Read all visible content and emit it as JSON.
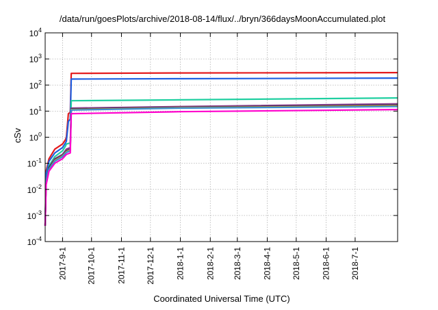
{
  "chart_data": {
    "type": "line",
    "title": "/data/run/goesPlots/archive/2018-08-14/flux/../bryn/366daysMoonAccumulated.plot",
    "xlabel": "Coordinated Universal Time (UTC)",
    "ylabel": "cSv",
    "yscale": "log",
    "ylim": [
      0.0001,
      10000
    ],
    "xlim": [
      "2017-08-14",
      "2018-08-14"
    ],
    "grid": true,
    "legend": "none",
    "x_ticks": [
      "2017-9-1",
      "2017-10-1",
      "2017-11-1",
      "2017-12-1",
      "2018-1-1",
      "2018-2-1",
      "2018-3-1",
      "2018-4-1",
      "2018-5-1",
      "2018-6-1",
      "2018-7-1"
    ],
    "y_ticks": [
      {
        "value": 0.0001,
        "base": "10",
        "exp": "-4"
      },
      {
        "value": 0.001,
        "base": "10",
        "exp": "-3"
      },
      {
        "value": 0.01,
        "base": "10",
        "exp": "-2"
      },
      {
        "value": 0.1,
        "base": "10",
        "exp": "-1"
      },
      {
        "value": 1,
        "base": "10",
        "exp": "0"
      },
      {
        "value": 10,
        "base": "10",
        "exp": "1"
      },
      {
        "value": 100,
        "base": "10",
        "exp": "2"
      },
      {
        "value": 1000,
        "base": "10",
        "exp": "3"
      },
      {
        "value": 10000,
        "base": "10",
        "exp": "4"
      }
    ],
    "series": [
      {
        "color": "#e41a1c",
        "points": [
          [
            "2017-08-14",
            0.0004
          ],
          [
            "2017-08-15",
            0.05
          ],
          [
            "2017-08-18",
            0.15
          ],
          [
            "2017-08-24",
            0.35
          ],
          [
            "2017-09-01",
            0.55
          ],
          [
            "2017-09-04",
            0.8
          ],
          [
            "2017-09-05",
            1.0
          ],
          [
            "2017-09-07",
            8
          ],
          [
            "2017-09-09",
            9
          ],
          [
            "2017-09-10",
            280
          ],
          [
            "2018-01-01",
            290
          ],
          [
            "2018-08-14",
            300
          ]
        ]
      },
      {
        "color": "#1f5fe0",
        "points": [
          [
            "2017-08-14",
            0.0004
          ],
          [
            "2017-08-15",
            0.04
          ],
          [
            "2017-08-18",
            0.12
          ],
          [
            "2017-08-24",
            0.25
          ],
          [
            "2017-09-01",
            0.4
          ],
          [
            "2017-09-04",
            0.6
          ],
          [
            "2017-09-05",
            0.7
          ],
          [
            "2017-09-07",
            4
          ],
          [
            "2017-09-09",
            5
          ],
          [
            "2017-09-10",
            170
          ],
          [
            "2018-01-01",
            175
          ],
          [
            "2018-08-14",
            185
          ]
        ]
      },
      {
        "color": "#1fcfa0",
        "points": [
          [
            "2017-08-14",
            0.0004
          ],
          [
            "2017-08-15",
            0.02
          ],
          [
            "2017-08-18",
            0.08
          ],
          [
            "2017-08-24",
            0.18
          ],
          [
            "2017-09-01",
            0.3
          ],
          [
            "2017-09-04",
            0.45
          ],
          [
            "2017-09-05",
            0.55
          ],
          [
            "2017-09-09",
            0.6
          ],
          [
            "2017-09-10",
            25
          ],
          [
            "2018-01-01",
            27
          ],
          [
            "2018-08-14",
            32
          ]
        ]
      },
      {
        "color": "#8b3a8b",
        "points": [
          [
            "2017-08-14",
            0.0004
          ],
          [
            "2017-08-15",
            0.02
          ],
          [
            "2017-08-18",
            0.07
          ],
          [
            "2017-08-24",
            0.15
          ],
          [
            "2017-09-01",
            0.22
          ],
          [
            "2017-09-05",
            0.35
          ],
          [
            "2017-09-09",
            0.4
          ],
          [
            "2017-09-10",
            13
          ],
          [
            "2018-01-01",
            15
          ],
          [
            "2018-08-14",
            19
          ]
        ]
      },
      {
        "color": "#333355",
        "points": [
          [
            "2017-08-14",
            0.0004
          ],
          [
            "2017-08-15",
            0.02
          ],
          [
            "2017-08-18",
            0.07
          ],
          [
            "2017-08-24",
            0.14
          ],
          [
            "2017-09-01",
            0.2
          ],
          [
            "2017-09-05",
            0.3
          ],
          [
            "2017-09-09",
            0.35
          ],
          [
            "2017-09-10",
            12
          ],
          [
            "2018-01-01",
            14
          ],
          [
            "2018-08-14",
            17
          ]
        ]
      },
      {
        "color": "#c8a040",
        "points": [
          [
            "2017-08-14",
            0.0004
          ],
          [
            "2017-08-15",
            0.02
          ],
          [
            "2017-08-18",
            0.06
          ],
          [
            "2017-08-24",
            0.13
          ],
          [
            "2017-09-01",
            0.19
          ],
          [
            "2017-09-05",
            0.28
          ],
          [
            "2017-09-09",
            0.33
          ],
          [
            "2017-09-10",
            11.5
          ],
          [
            "2018-01-01",
            13.5
          ],
          [
            "2018-08-14",
            16
          ]
        ]
      },
      {
        "color": "#3a8fd0",
        "points": [
          [
            "2017-08-14",
            0.0004
          ],
          [
            "2017-08-15",
            0.02
          ],
          [
            "2017-08-18",
            0.06
          ],
          [
            "2017-08-24",
            0.12
          ],
          [
            "2017-09-01",
            0.18
          ],
          [
            "2017-09-05",
            0.26
          ],
          [
            "2017-09-09",
            0.3
          ],
          [
            "2017-09-10",
            11
          ],
          [
            "2018-01-01",
            13
          ],
          [
            "2018-08-14",
            15
          ]
        ]
      },
      {
        "color": "#ff00cc",
        "points": [
          [
            "2017-08-14",
            0.0004
          ],
          [
            "2017-08-15",
            0.015
          ],
          [
            "2017-08-18",
            0.05
          ],
          [
            "2017-08-24",
            0.1
          ],
          [
            "2017-09-01",
            0.15
          ],
          [
            "2017-09-05",
            0.22
          ],
          [
            "2017-09-09",
            0.25
          ],
          [
            "2017-09-10",
            8
          ],
          [
            "2018-01-01",
            9.5
          ],
          [
            "2018-08-14",
            11.5
          ]
        ]
      }
    ]
  }
}
